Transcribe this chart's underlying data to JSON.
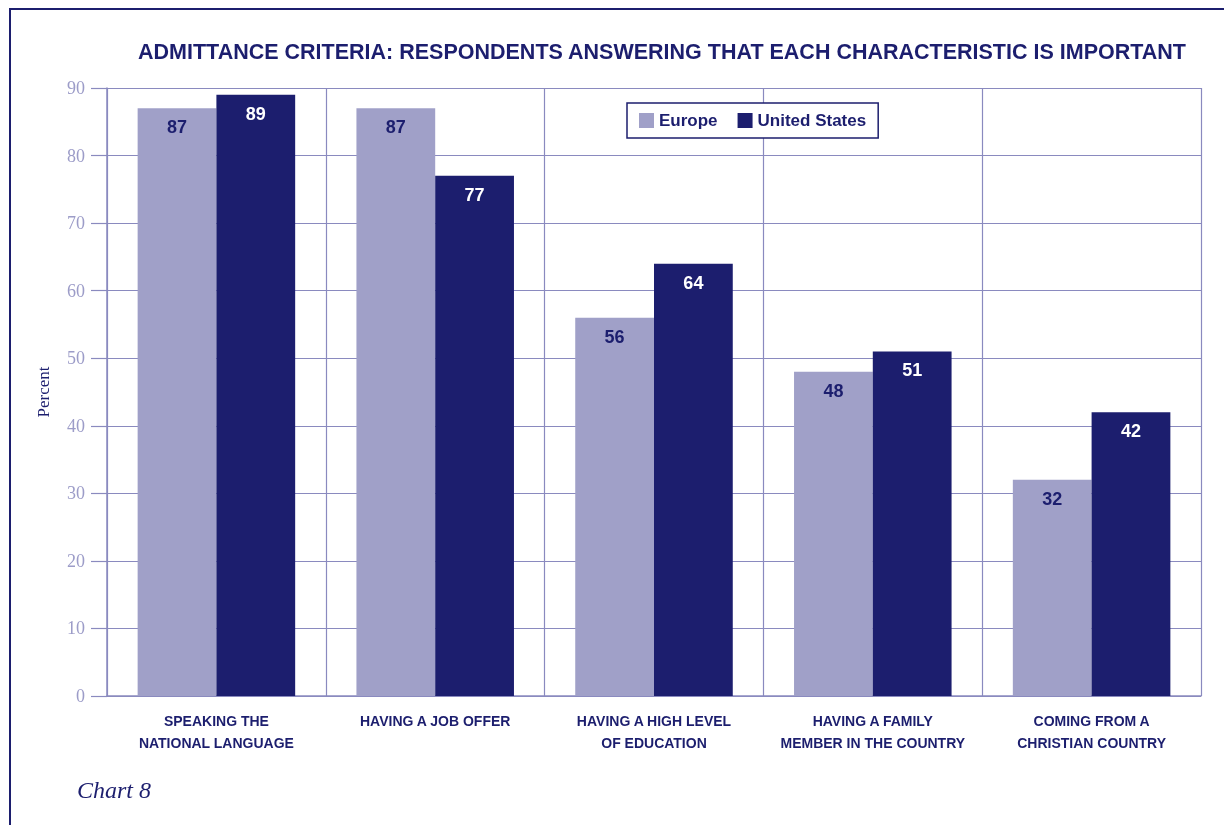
{
  "chart_data": {
    "type": "bar",
    "title": "ADMITTANCE CRITERIA: RESPONDENTS ANSWERING THAT EACH CHARACTERISTIC IS IMPORTANT",
    "ylabel": "Percent",
    "categories": [
      "SPEAKING THE\nNATIONAL LANGUAGE",
      "HAVING A JOB OFFER",
      "HAVING A HIGH LEVEL\nOF EDUCATION",
      "HAVING A FAMILY\nMEMBER IN THE COUNTRY",
      "COMING FROM A\nCHRISTIAN COUNTRY"
    ],
    "series": [
      {
        "name": "Europe",
        "color": "#a0a0c8",
        "values": [
          87,
          87,
          56,
          48,
          32
        ]
      },
      {
        "name": "United States",
        "color": "#1c1e6e",
        "values": [
          89,
          77,
          64,
          51,
          42
        ]
      }
    ],
    "ylim": [
      0,
      90
    ],
    "yticks": [
      0,
      10,
      20,
      30,
      40,
      50,
      60,
      70,
      80,
      90
    ],
    "grid": true,
    "legend": "top",
    "data_labels": true,
    "annotations": [
      "Chart 8"
    ]
  }
}
